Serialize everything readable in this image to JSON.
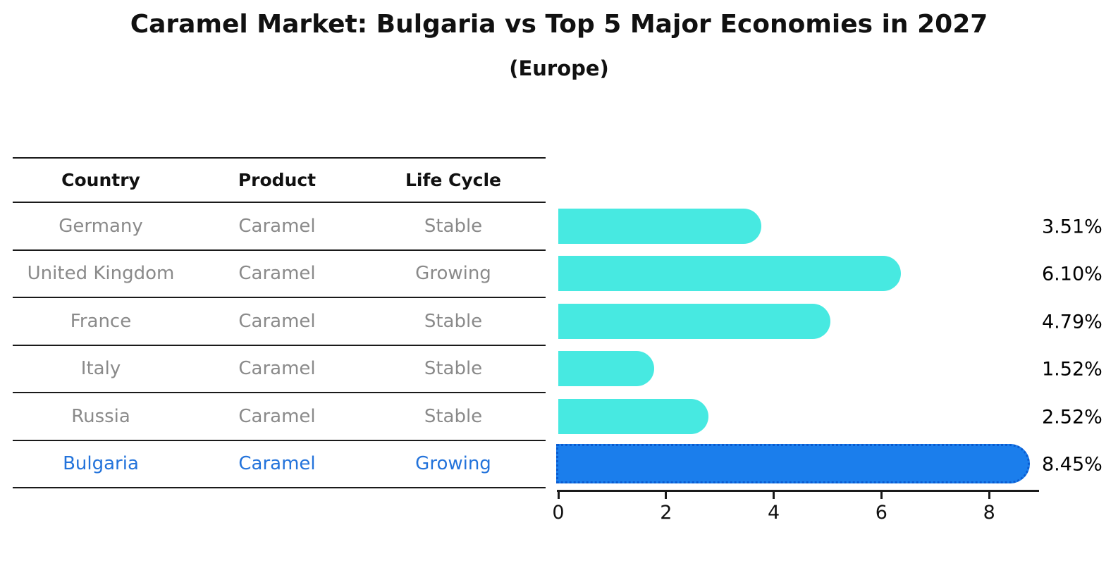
{
  "title": "Caramel Market: Bulgaria vs Top 5 Major Economies in 2027",
  "subtitle": "(Europe)",
  "table": {
    "headers": [
      "Country",
      "Product",
      "Life Cycle"
    ],
    "rows": [
      {
        "country": "Germany",
        "product": "Caramel",
        "life_cycle": "Stable",
        "highlighted": false
      },
      {
        "country": "United Kingdom",
        "product": "Caramel",
        "life_cycle": "Growing",
        "highlighted": false
      },
      {
        "country": "France",
        "product": "Caramel",
        "life_cycle": "Stable",
        "highlighted": false
      },
      {
        "country": "Italy",
        "product": "Caramel",
        "life_cycle": "Stable",
        "highlighted": false
      },
      {
        "country": "Russia",
        "product": "Caramel",
        "life_cycle": "Stable",
        "highlighted": false
      },
      {
        "country": "Bulgaria",
        "product": "Caramel",
        "life_cycle": "Growing",
        "highlighted": true
      }
    ]
  },
  "chart_data": {
    "type": "bar",
    "orientation": "horizontal",
    "title": "Caramel Market: Bulgaria vs Top 5 Major Economies in 2027",
    "subtitle": "(Europe)",
    "categories": [
      "Germany",
      "United Kingdom",
      "France",
      "Italy",
      "Russia",
      "Bulgaria"
    ],
    "values": [
      3.51,
      6.1,
      4.79,
      1.52,
      2.52,
      8.45
    ],
    "value_labels": [
      "3.51%",
      "6.10%",
      "4.79%",
      "1.52%",
      "2.52%",
      "8.45%"
    ],
    "highlighted_index": 5,
    "x_ticks": [
      0,
      2,
      4,
      6,
      8
    ],
    "x_tick_labels": [
      "0",
      "2",
      "4",
      "6",
      "8"
    ],
    "xlim": [
      0,
      8.93
    ],
    "grid": false,
    "legend": false,
    "colors": {
      "bar": "#47E9E1",
      "highlight_bar": "#1B7EEC",
      "highlight_border": "#0A5BD0",
      "highlight_text": "#2373DB",
      "row_text": "#8A8A8A",
      "heading_text": "#111111",
      "axis": "#1A1A1A",
      "value_label_text": "#000000"
    }
  }
}
